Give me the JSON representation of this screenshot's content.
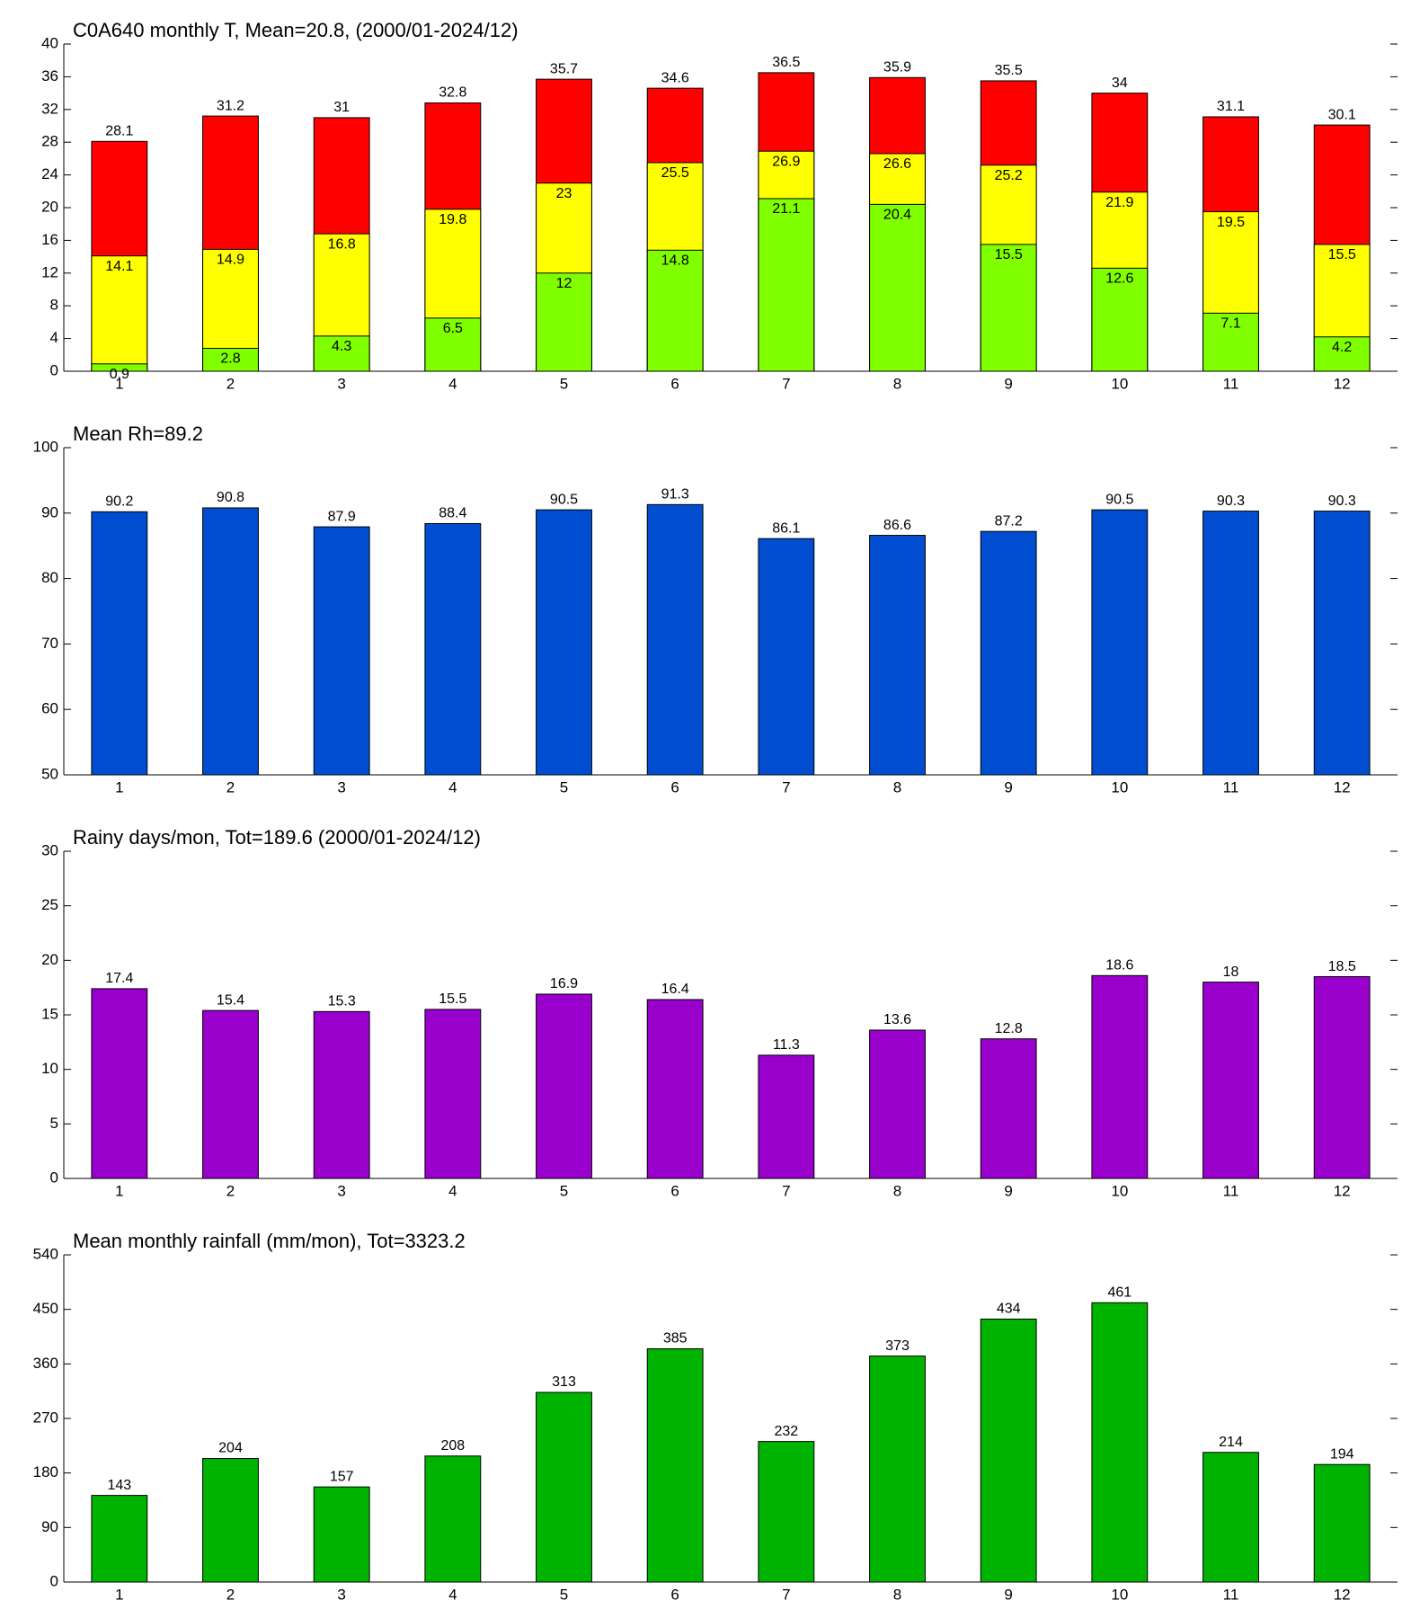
{
  "chart_data": [
    {
      "type": "bar",
      "title": "C0A640 monthly T, Mean=20.8, (2000/01-2024/12)",
      "categories": [
        "1",
        "2",
        "3",
        "4",
        "5",
        "6",
        "7",
        "8",
        "9",
        "10",
        "11",
        "12"
      ],
      "series": [
        {
          "color": "#ff0000",
          "values": [
            28.1,
            31.2,
            31,
            32.8,
            35.7,
            34.6,
            36.5,
            35.9,
            35.5,
            34,
            31.1,
            30.1
          ]
        },
        {
          "color": "#ffff00",
          "values": [
            14.1,
            14.9,
            16.8,
            19.8,
            23,
            25.5,
            26.9,
            26.6,
            25.2,
            21.9,
            19.5,
            15.5
          ]
        },
        {
          "color": "#80ff00",
          "values": [
            0.9,
            2.8,
            4.3,
            6.5,
            12,
            14.8,
            21.1,
            20.4,
            15.5,
            12.6,
            7.1,
            4.2
          ]
        }
      ],
      "ylim": [
        0,
        40
      ],
      "yticks": [
        0,
        4,
        8,
        12,
        16,
        20,
        24,
        28,
        32,
        36,
        40
      ]
    },
    {
      "type": "bar",
      "title": "Mean Rh=89.2",
      "categories": [
        "1",
        "2",
        "3",
        "4",
        "5",
        "6",
        "7",
        "8",
        "9",
        "10",
        "11",
        "12"
      ],
      "values": [
        90.2,
        90.8,
        87.9,
        88.4,
        90.5,
        91.3,
        86.1,
        86.6,
        87.2,
        90.5,
        90.3,
        90.3
      ],
      "color": "#004ecf",
      "ylim": [
        50,
        100
      ],
      "yticks": [
        50,
        60,
        70,
        80,
        90,
        100
      ]
    },
    {
      "type": "bar",
      "title": "Rainy days/mon, Tot=189.6 (2000/01-2024/12)",
      "categories": [
        "1",
        "2",
        "3",
        "4",
        "5",
        "6",
        "7",
        "8",
        "9",
        "10",
        "11",
        "12"
      ],
      "values": [
        17.4,
        15.4,
        15.3,
        15.5,
        16.9,
        16.4,
        11.3,
        13.6,
        12.8,
        18.6,
        18,
        18.5
      ],
      "color": "#9900cc",
      "ylim": [
        0,
        30
      ],
      "yticks": [
        0,
        5,
        10,
        15,
        20,
        25,
        30
      ]
    },
    {
      "type": "bar",
      "title": "Mean monthly rainfall (mm/mon), Tot=3323.2",
      "categories": [
        "1",
        "2",
        "3",
        "4",
        "5",
        "6",
        "7",
        "8",
        "9",
        "10",
        "11",
        "12"
      ],
      "values": [
        143,
        204,
        157,
        208,
        313,
        385,
        232,
        373,
        434,
        461,
        214,
        194
      ],
      "color": "#00b300",
      "ylim": [
        0,
        540
      ],
      "yticks": [
        0,
        90,
        180,
        270,
        360,
        450,
        540
      ]
    }
  ]
}
